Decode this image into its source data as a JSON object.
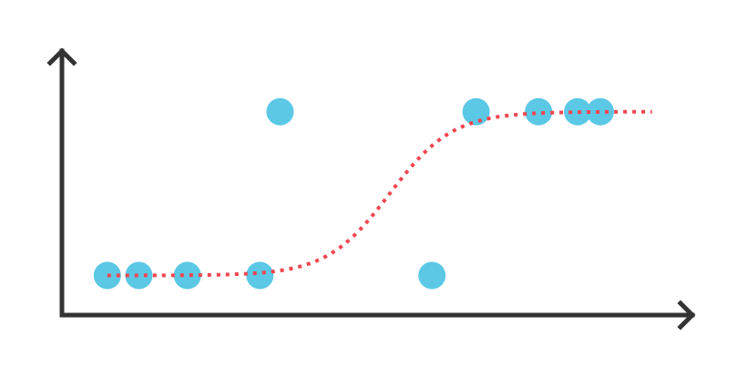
{
  "chart_data": {
    "type": "scatter",
    "title": "",
    "xlabel": "",
    "ylabel": "",
    "xlim": [
      0,
      100
    ],
    "ylim": [
      0,
      10
    ],
    "grid": false,
    "legend": "none",
    "points": [
      {
        "x": 7.2,
        "y": 1.5
      },
      {
        "x": 12.2,
        "y": 1.5
      },
      {
        "x": 19.9,
        "y": 1.5
      },
      {
        "x": 31.4,
        "y": 1.5
      },
      {
        "x": 34.6,
        "y": 7.7
      },
      {
        "x": 58.7,
        "y": 1.5
      },
      {
        "x": 65.7,
        "y": 7.7
      },
      {
        "x": 75.6,
        "y": 7.7
      },
      {
        "x": 81.8,
        "y": 7.7
      },
      {
        "x": 85.4,
        "y": 7.7
      }
    ],
    "fit_curve": {
      "type": "logistic",
      "x_range": [
        7.2,
        93.6
      ],
      "low": 1.5,
      "high": 7.7,
      "midpoint": 52.0,
      "steepness": 0.2
    },
    "colors": {
      "axis": "#333333",
      "points": "#5bc8e6",
      "curve": "#f04650"
    }
  }
}
